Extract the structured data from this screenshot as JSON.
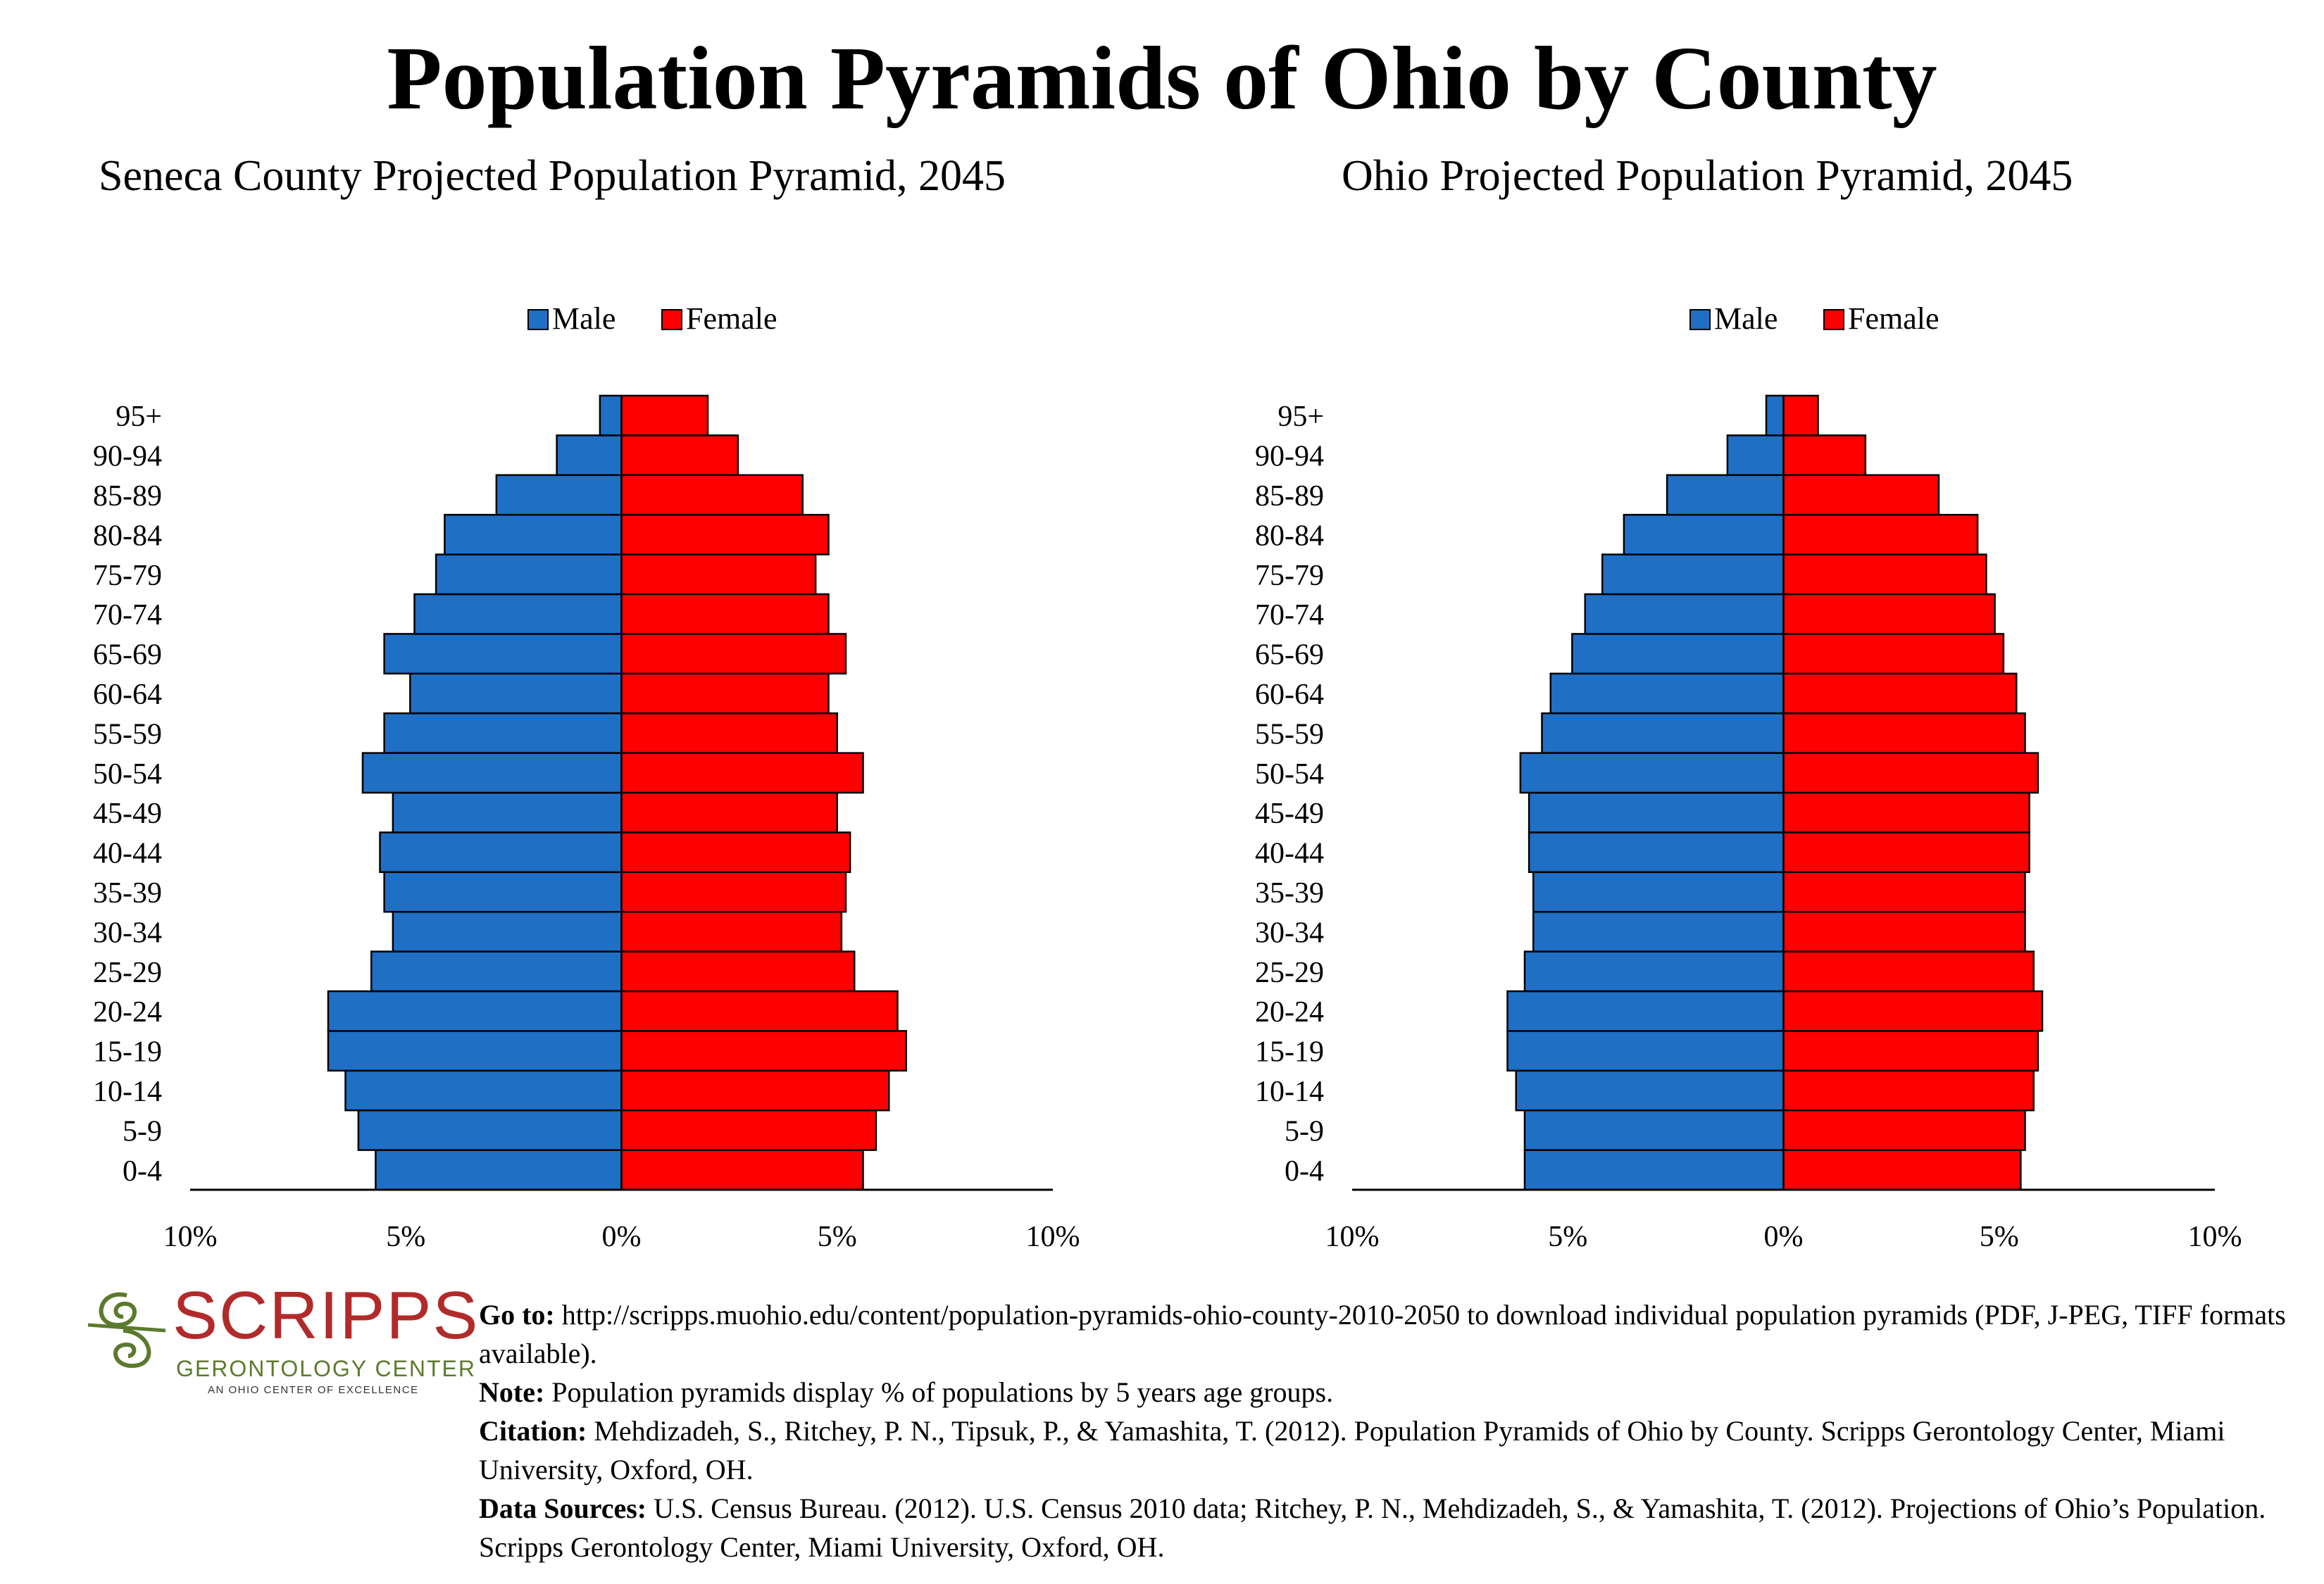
{
  "title": "Population Pyramids of Ohio by County",
  "chart_data": [
    {
      "type": "bar",
      "orientation": "horizontal-pyramid",
      "title": "Seneca County Projected Population Pyramid, 2045",
      "categories": [
        "0-4",
        "5-9",
        "10-14",
        "15-19",
        "20-24",
        "25-29",
        "30-34",
        "35-39",
        "40-44",
        "45-49",
        "50-54",
        "55-59",
        "60-64",
        "65-69",
        "70-74",
        "75-79",
        "80-84",
        "85-89",
        "90-94",
        "95+"
      ],
      "series": [
        {
          "name": "Male",
          "color": "#1f6fc5",
          "values": [
            5.7,
            6.1,
            6.4,
            6.8,
            6.8,
            5.8,
            5.3,
            5.5,
            5.6,
            5.3,
            6.0,
            5.5,
            4.9,
            5.5,
            4.8,
            4.3,
            4.1,
            2.9,
            1.5,
            0.5
          ]
        },
        {
          "name": "Female",
          "color": "#ff0000",
          "values": [
            5.6,
            5.9,
            6.2,
            6.6,
            6.4,
            5.4,
            5.1,
            5.2,
            5.3,
            5.0,
            5.6,
            5.0,
            4.8,
            5.2,
            4.8,
            4.5,
            4.8,
            4.2,
            2.7,
            2.0
          ]
        }
      ],
      "xlim": [
        -10,
        10
      ],
      "tick_labels": [
        "10%",
        "5%",
        "0%",
        "5%",
        "10%"
      ],
      "legend": "top-center"
    },
    {
      "type": "bar",
      "orientation": "horizontal-pyramid",
      "title": "Ohio Projected Population Pyramid, 2045",
      "categories": [
        "0-4",
        "5-9",
        "10-14",
        "15-19",
        "20-24",
        "25-29",
        "30-34",
        "35-39",
        "40-44",
        "45-49",
        "50-54",
        "55-59",
        "60-64",
        "65-69",
        "70-74",
        "75-79",
        "80-84",
        "85-89",
        "90-94",
        "95+"
      ],
      "series": [
        {
          "name": "Male",
          "color": "#1f6fc5",
          "values": [
            6.0,
            6.0,
            6.2,
            6.4,
            6.4,
            6.0,
            5.8,
            5.8,
            5.9,
            5.9,
            6.1,
            5.6,
            5.4,
            4.9,
            4.6,
            4.2,
            3.7,
            2.7,
            1.3,
            0.4
          ]
        },
        {
          "name": "Female",
          "color": "#ff0000",
          "values": [
            5.5,
            5.6,
            5.8,
            5.9,
            6.0,
            5.8,
            5.6,
            5.6,
            5.7,
            5.7,
            5.9,
            5.6,
            5.4,
            5.1,
            4.9,
            4.7,
            4.5,
            3.6,
            1.9,
            0.8
          ]
        }
      ],
      "xlim": [
        -10,
        10
      ],
      "tick_labels": [
        "10%",
        "5%",
        "0%",
        "5%",
        "10%"
      ],
      "legend": "top-center"
    }
  ],
  "logo": {
    "word": "SCRIPPS",
    "sub": "GERONTOLOGY CENTER",
    "tag": "AN OHIO CENTER OF EXCELLENCE"
  },
  "notes": {
    "goto_label": "Go to:",
    "goto_text": "http://scripps.muohio.edu/content/population-pyramids-ohio-county-2010-2050 to download individual population pyramids (PDF, J-PEG, TIFF formats available).",
    "note_label": "Note:",
    "note_text": "Population pyramids display % of populations by 5 years age groups.",
    "citation_label": "Citation:",
    "citation_text": "Mehdizadeh, S., Ritchey, P. N., Tipsuk, P., & Yamashita, T. (2012). Population Pyramids of Ohio by County. Scripps Gerontology Center, Miami University, Oxford, OH.",
    "sources_label": "Data Sources:",
    "sources_text": "U.S. Census Bureau. (2012). U.S. Census 2010 data; Ritchey, P. N., Mehdizadeh, S., & Yamashita, T. (2012). Projections of Ohio’s Population. Scripps Gerontology Center, Miami University, Oxford, OH."
  }
}
